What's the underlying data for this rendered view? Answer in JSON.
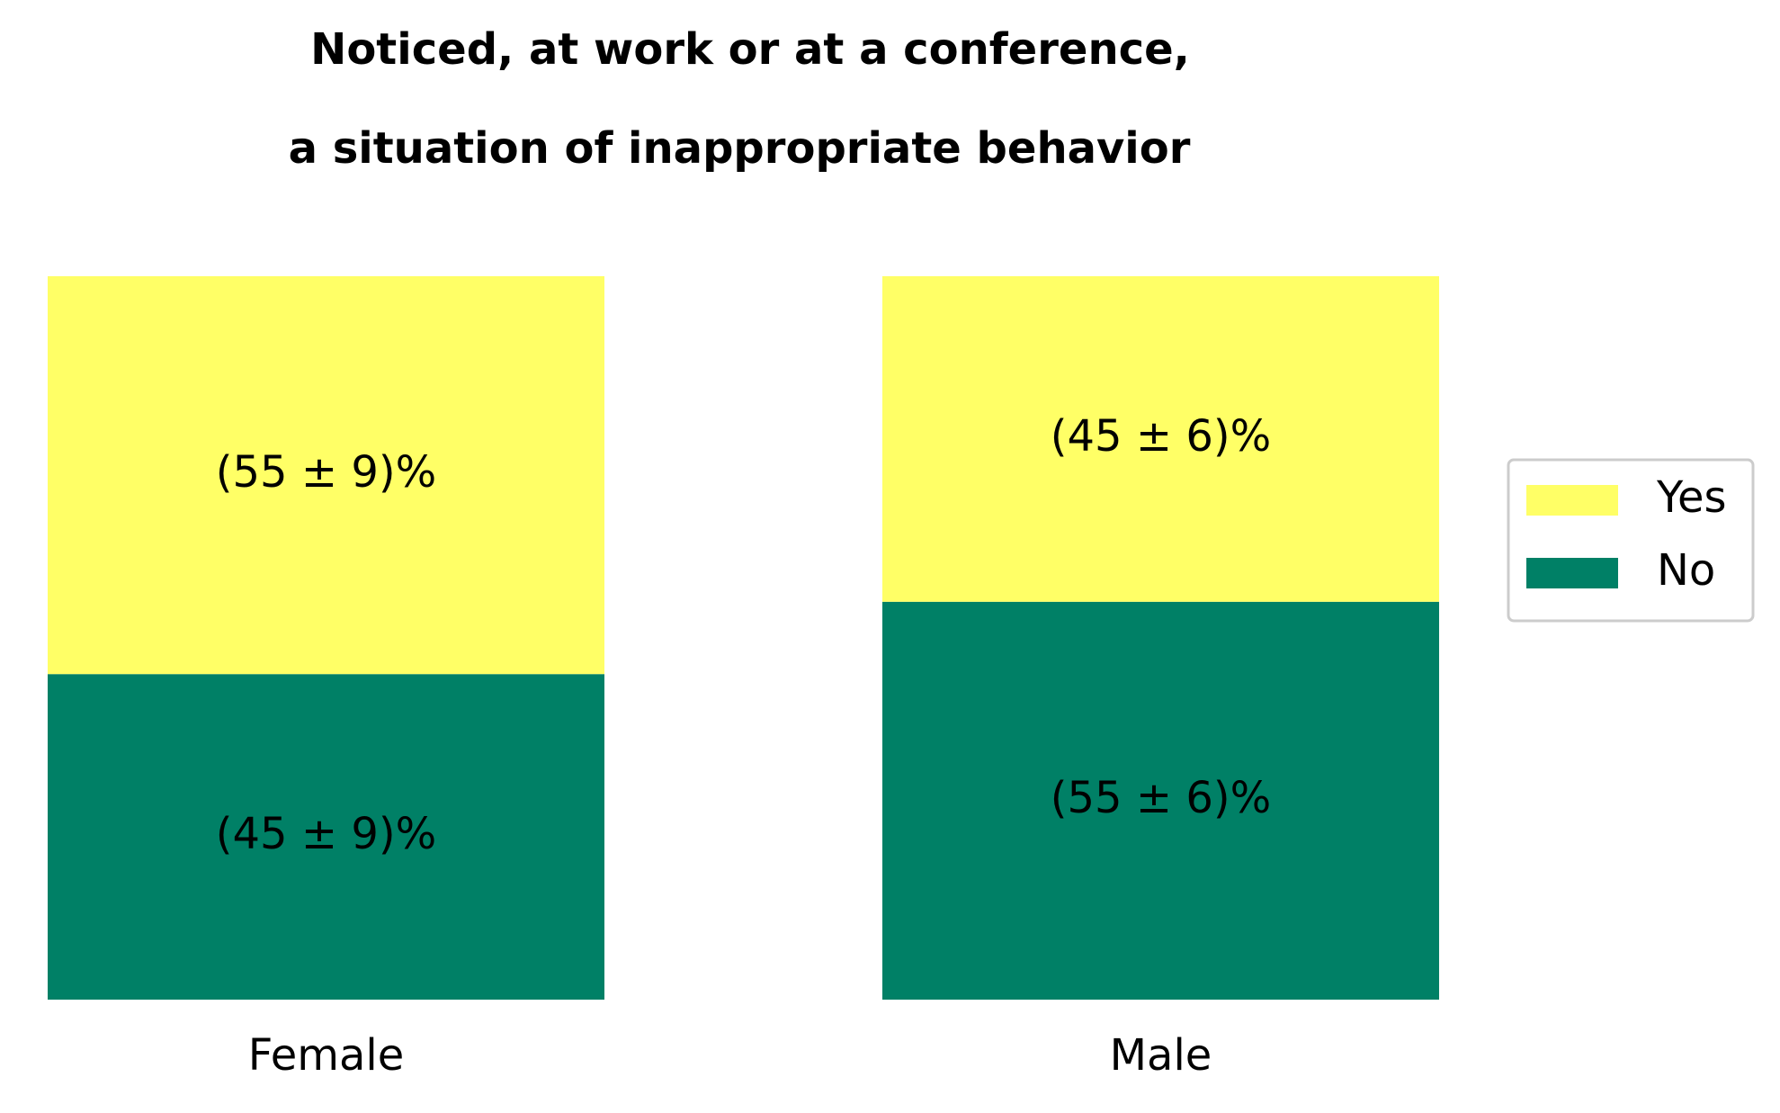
{
  "chart_data": {
    "type": "bar",
    "stacked": true,
    "title": [
      "Noticed, at work or at a conference,",
      "a situation of inappropriate behavior"
    ],
    "categories": [
      "Female",
      "Male"
    ],
    "series": [
      {
        "name": "No",
        "color": "#008066",
        "values": [
          45,
          55
        ],
        "value_labels": [
          "(45 ± 9)%",
          "(55 ± 6)%"
        ]
      },
      {
        "name": "Yes",
        "color": "#ffff66",
        "values": [
          55,
          45
        ],
        "value_labels": [
          "(55 ± 9)%",
          "(45 ± 6)%"
        ]
      }
    ],
    "legend": "right"
  }
}
